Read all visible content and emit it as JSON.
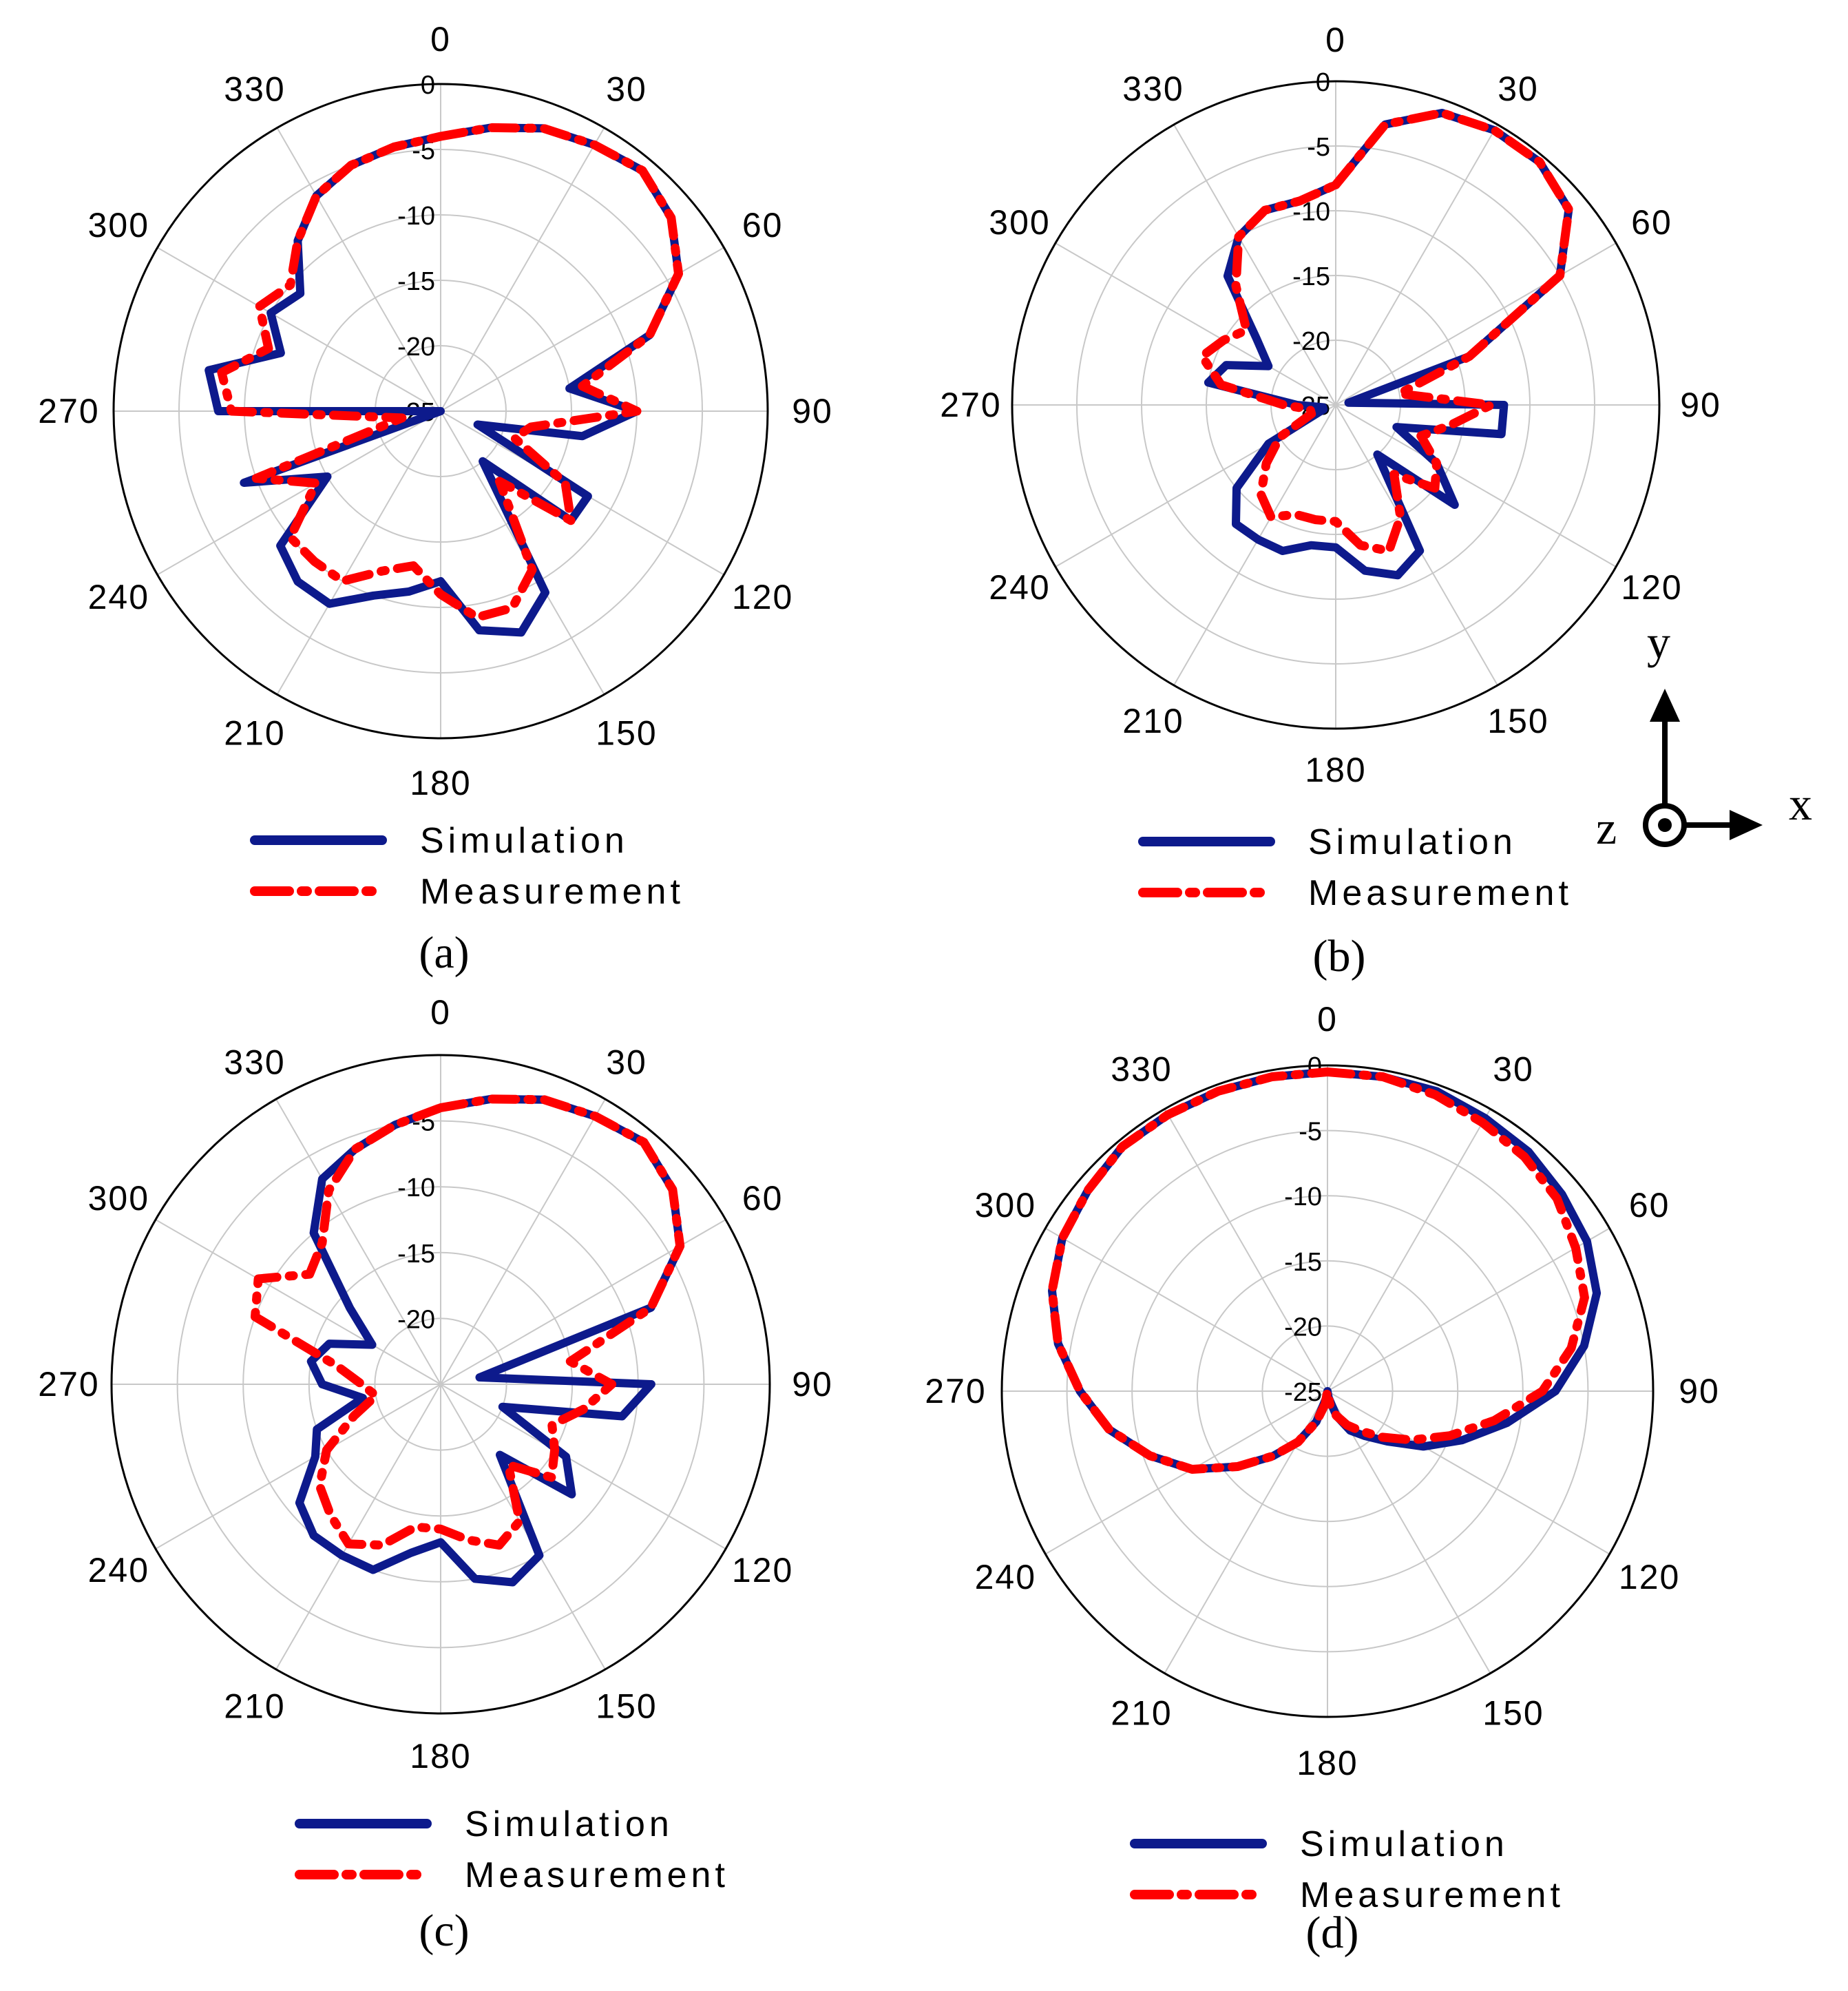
{
  "figure": {
    "axes_indicator": {
      "y": "y",
      "x": "x",
      "z": "z"
    }
  },
  "chart_data": [
    {
      "type": "polar",
      "caption": "(a)",
      "angle_ticks": [
        "0",
        "30",
        "60",
        "90",
        "120",
        "150",
        "180",
        "210",
        "240",
        "270",
        "300",
        "330"
      ],
      "radial_ticks": [
        "0",
        "-5",
        "-10",
        "-15",
        "-20",
        "-25"
      ],
      "r_range": [
        -25,
        0
      ],
      "legend": [
        "Simulation",
        "Measurement"
      ],
      "series": [
        {
          "name": "Simulation",
          "color": "#0d1a8c",
          "style": "solid",
          "theta": [
            0,
            10,
            20,
            30,
            40,
            50,
            60,
            70,
            80,
            90,
            100,
            110,
            120,
            130,
            140,
            150,
            160,
            170,
            180,
            190,
            200,
            210,
            220,
            230,
            240,
            250,
            260,
            270,
            280,
            290,
            300,
            310,
            320,
            330,
            340,
            350,
            360
          ],
          "r": [
            -4,
            -3,
            -2,
            -1.5,
            -1,
            -2,
            -4,
            -8,
            -15,
            -10,
            -14,
            -22,
            -12,
            -12,
            -20,
            -9,
            -7,
            -8,
            -12,
            -11,
            -10,
            -8,
            -8,
            -9,
            -15,
            -9,
            -25,
            -8,
            -7,
            -12,
            -10,
            -11,
            -8,
            -6,
            -5,
            -4.5,
            -4
          ]
        },
        {
          "name": "Measurement",
          "color": "#ff0000",
          "style": "dash-dot",
          "theta": [
            0,
            10,
            20,
            30,
            40,
            50,
            60,
            70,
            80,
            90,
            100,
            110,
            120,
            130,
            140,
            150,
            160,
            170,
            180,
            190,
            200,
            210,
            220,
            230,
            240,
            250,
            260,
            270,
            280,
            290,
            300,
            310,
            320,
            330,
            340,
            350,
            360
          ],
          "r": [
            -4,
            -3,
            -2,
            -1.5,
            -1,
            -2,
            -4,
            -8,
            -14,
            -10,
            -18,
            -19,
            -14,
            -12,
            -18,
            -11,
            -9,
            -9,
            -11,
            -13,
            -12,
            -10,
            -10,
            -10,
            -14,
            -10,
            -22,
            -9,
            -8,
            -11,
            -9,
            -10,
            -8,
            -6,
            -5,
            -4.5,
            -4
          ]
        }
      ]
    },
    {
      "type": "polar",
      "caption": "(b)",
      "angle_ticks": [
        "0",
        "30",
        "60",
        "90",
        "120",
        "150",
        "180",
        "210",
        "240",
        "270",
        "300",
        "330"
      ],
      "radial_ticks": [
        "0",
        "-5",
        "-10",
        "-15",
        "-20",
        "-25"
      ],
      "r_range": [
        -25,
        0
      ],
      "legend": [
        "Simulation",
        "Measurement"
      ],
      "series": [
        {
          "name": "Simulation",
          "color": "#0d1a8c",
          "style": "solid",
          "theta": [
            0,
            10,
            20,
            30,
            40,
            50,
            60,
            70,
            80,
            90,
            100,
            110,
            120,
            130,
            140,
            150,
            160,
            170,
            180,
            190,
            200,
            210,
            220,
            230,
            240,
            250,
            260,
            270,
            280,
            290,
            300,
            310,
            320,
            330,
            340,
            350,
            360
          ],
          "r": [
            -8,
            -3,
            -1,
            -0.5,
            -0.5,
            -1.5,
            -5,
            -14,
            -24,
            -12,
            -12,
            -20,
            -16,
            -13,
            -20,
            -12,
            -11,
            -12,
            -14,
            -14,
            -13,
            -13,
            -13,
            -15,
            -19,
            -24,
            -24,
            -22,
            -15,
            -16,
            -19,
            -17,
            -12,
            -10,
            -9,
            -9,
            -8
          ]
        },
        {
          "name": "Measurement",
          "color": "#ff0000",
          "style": "dash-dot",
          "theta": [
            0,
            10,
            20,
            30,
            40,
            50,
            60,
            70,
            80,
            90,
            100,
            110,
            120,
            130,
            140,
            150,
            160,
            170,
            180,
            190,
            200,
            210,
            220,
            230,
            240,
            250,
            260,
            270,
            280,
            290,
            300,
            310,
            320,
            330,
            340,
            350,
            360
          ],
          "r": [
            -8,
            -3,
            -1,
            -0.5,
            -0.5,
            -1.5,
            -5,
            -14,
            -20,
            -13,
            -16,
            -18,
            -16,
            -15,
            -18,
            -15,
            -13,
            -14,
            -16,
            -16,
            -16,
            -15,
            -16,
            -18,
            -20,
            -23,
            -23,
            -21,
            -16,
            -14,
            -15,
            -16,
            -13,
            -10,
            -9,
            -9,
            -8
          ]
        }
      ]
    },
    {
      "type": "polar",
      "caption": "(c)",
      "angle_ticks": [
        "0",
        "30",
        "60",
        "90",
        "120",
        "150",
        "180",
        "210",
        "240",
        "270",
        "300",
        "330"
      ],
      "radial_ticks": [
        "-5",
        "-10",
        "-15",
        "-20"
      ],
      "r_range": [
        -25,
        0
      ],
      "legend": [
        "Simulation",
        "Measurement"
      ],
      "series": [
        {
          "name": "Simulation",
          "color": "#0d1a8c",
          "style": "solid",
          "theta": [
            0,
            10,
            20,
            30,
            40,
            50,
            60,
            70,
            80,
            90,
            100,
            110,
            120,
            130,
            140,
            150,
            160,
            170,
            180,
            190,
            200,
            210,
            220,
            230,
            240,
            250,
            260,
            270,
            280,
            290,
            300,
            310,
            320,
            330,
            340,
            350,
            360
          ],
          "r": [
            -4,
            -3,
            -2,
            -1.5,
            -1,
            -2,
            -4,
            -8,
            -22,
            -9,
            -11,
            -20,
            -14,
            -12,
            -18,
            -10,
            -9,
            -10,
            -13,
            -12,
            -10,
            -10,
            -10,
            -11,
            -14,
            -15,
            -19,
            -16,
            -15,
            -16,
            -19,
            -16,
            -10,
            -7,
            -6,
            -5,
            -4
          ]
        },
        {
          "name": "Measurement",
          "color": "#ff0000",
          "style": "dash-dot",
          "theta": [
            0,
            10,
            20,
            30,
            40,
            50,
            60,
            70,
            80,
            90,
            100,
            110,
            120,
            130,
            140,
            150,
            160,
            170,
            180,
            190,
            200,
            210,
            220,
            230,
            240,
            250,
            260,
            270,
            280,
            290,
            300,
            310,
            320,
            330,
            340,
            350,
            360
          ],
          "r": [
            -4,
            -3,
            -2,
            -1.5,
            -1,
            -2,
            -4,
            -8,
            -15,
            -12,
            -14,
            -16,
            -15,
            -14,
            -17,
            -13,
            -12,
            -13,
            -14,
            -14,
            -12,
            -11,
            -12,
            -13,
            -15,
            -18,
            -20,
            -19,
            -17,
            -10,
            -9,
            -12,
            -11,
            -8,
            -6,
            -5,
            -4
          ]
        }
      ]
    },
    {
      "type": "polar",
      "caption": "(d)",
      "angle_ticks": [
        "0",
        "30",
        "60",
        "90",
        "120",
        "150",
        "180",
        "210",
        "240",
        "270",
        "300",
        "330"
      ],
      "radial_ticks": [
        "0",
        "-5",
        "-10",
        "-15",
        "-20",
        "-25"
      ],
      "r_range": [
        -25,
        0
      ],
      "legend": [
        "Simulation",
        "Measurement"
      ],
      "series": [
        {
          "name": "Simulation",
          "color": "#0d1a8c",
          "style": "solid",
          "theta": [
            0,
            10,
            20,
            30,
            40,
            50,
            60,
            70,
            80,
            90,
            100,
            110,
            120,
            130,
            140,
            150,
            160,
            170,
            180,
            190,
            200,
            210,
            220,
            230,
            240,
            250,
            260,
            270,
            280,
            290,
            300,
            310,
            320,
            330,
            340,
            350,
            360
          ],
          "r": [
            -0.5,
            -0.5,
            -0.5,
            -0.8,
            -1,
            -1.5,
            -2,
            -3,
            -5,
            -7.5,
            -11,
            -14,
            -16.5,
            -19,
            -20.5,
            -21.5,
            -23,
            -24.5,
            -25,
            -24.5,
            -22.5,
            -20.5,
            -18.5,
            -16,
            -13,
            -10.5,
            -8,
            -6,
            -4,
            -2.5,
            -1.5,
            -1,
            -0.5,
            -0.5,
            -0.5,
            -0.5,
            -0.5
          ]
        },
        {
          "name": "Measurement",
          "color": "#ff0000",
          "style": "dash-dot",
          "theta": [
            0,
            10,
            20,
            30,
            40,
            50,
            60,
            70,
            80,
            90,
            100,
            110,
            120,
            130,
            140,
            150,
            160,
            170,
            180,
            190,
            200,
            210,
            220,
            230,
            240,
            250,
            260,
            270,
            280,
            290,
            300,
            310,
            320,
            330,
            340,
            350,
            360
          ],
          "r": [
            -0.5,
            -0.5,
            -0.8,
            -1.2,
            -1.5,
            -2,
            -3,
            -4,
            -6,
            -8.5,
            -12,
            -15,
            -17.5,
            -19.5,
            -21,
            -22,
            -23,
            -24,
            -25,
            -24,
            -22.5,
            -20.5,
            -18.5,
            -16,
            -13,
            -10.5,
            -8,
            -6,
            -4,
            -2.5,
            -1.5,
            -1,
            -0.5,
            -0.5,
            -0.5,
            -0.5,
            -0.5
          ]
        }
      ]
    }
  ]
}
